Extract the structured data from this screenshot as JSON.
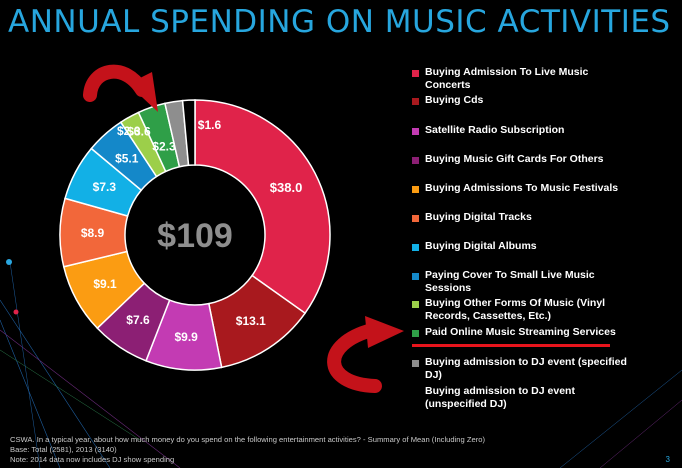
{
  "title": "ANNUAL SPENDING ON MUSIC ACTIVITIES",
  "chart_data": {
    "type": "pie",
    "subtype": "donut",
    "total_label": "$109",
    "categories": [
      "Buying Admission To Live Music Concerts",
      "Buying Cds",
      "Satellite Radio Subscription",
      "Buying Music Gift Cards For Others",
      "Buying Admissions To Music Festivals",
      "Buying Digital Tracks",
      "Buying Digital Albums",
      "Paying Cover To Small Live Music Sessions",
      "Buying Other Forms Of Music (Vinyl Records, Cassettes, Etc.)",
      "Paid Online Music Streaming Services",
      "Buying admission to DJ event (specified DJ)",
      "Buying admission to DJ event (unspecified DJ)"
    ],
    "values": [
      38.0,
      13.1,
      9.9,
      7.6,
      9.1,
      8.9,
      7.3,
      5.1,
      2.6,
      3.6,
      2.3,
      1.6
    ],
    "value_labels": [
      "$38.0",
      "$13.1",
      "$9.9",
      "$7.6",
      "$9.1",
      "$8.9",
      "$7.3",
      "$5.1",
      "$2.6",
      "$3.6",
      "$2.3",
      "$1.6"
    ],
    "colors": [
      "#e0234a",
      "#a8191e",
      "#c33bb3",
      "#8c1f74",
      "#fb9c12",
      "#f2673a",
      "#12b0e6",
      "#1488c9",
      "#9ccf4a",
      "#2f9f48",
      "#8e8e8e",
      "#000000"
    ],
    "highlighted_category": "Paid Online Music Streaming Services",
    "legend_position": "right"
  },
  "footer": {
    "line1": "CSWA. In a typical year, about how much money do you spend on the following entertainment activities? - Summary of Mean (Including Zero)",
    "line2": "Base: Total (2581), 2013 (3140)",
    "line3": "Note: 2014 data now includes DJ show spending"
  },
  "page_number": "3"
}
